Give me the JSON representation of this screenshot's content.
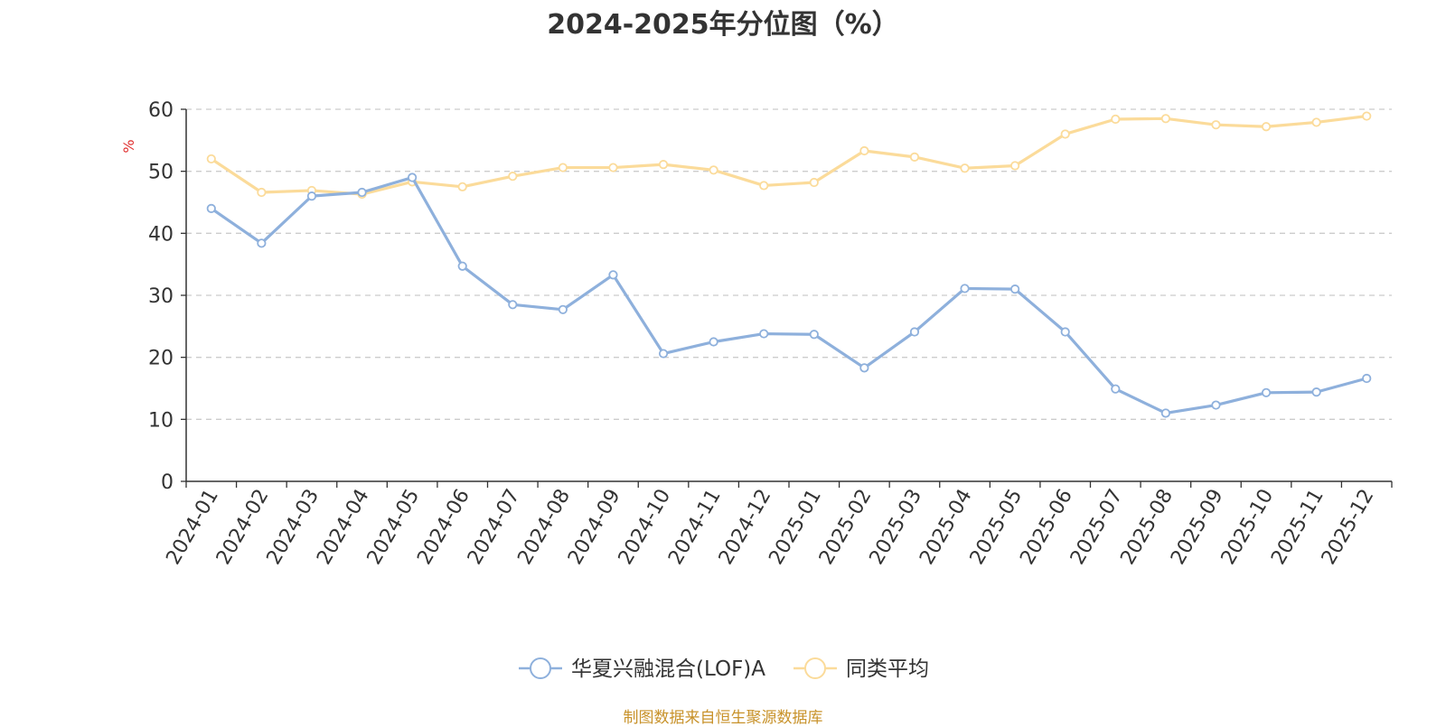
{
  "chart_data": {
    "type": "line",
    "title": "2024-2025年分位图（%）",
    "ylabel": "%",
    "xlabel": "",
    "ylim": [
      0,
      60
    ],
    "yticks": [
      0,
      10,
      20,
      30,
      40,
      50,
      60
    ],
    "grid": true,
    "legend_position": "bottom-center",
    "categories": [
      "2024-01",
      "2024-02",
      "2024-03",
      "2024-04",
      "2024-05",
      "2024-06",
      "2024-07",
      "2024-08",
      "2024-09",
      "2024-10",
      "2024-11",
      "2024-12",
      "2025-01",
      "2025-02",
      "2025-03",
      "2025-04",
      "2025-05",
      "2025-06",
      "2025-07",
      "2025-08",
      "2025-09",
      "2025-10",
      "2025-11",
      "2025-12"
    ],
    "series": [
      {
        "name": "华夏兴融混合(LOF)A",
        "color": "#8eb0dc",
        "values": [
          44.0,
          38.4,
          46.0,
          46.6,
          49.0,
          34.7,
          28.5,
          27.7,
          33.3,
          20.6,
          22.5,
          23.8,
          23.7,
          18.3,
          24.1,
          31.1,
          31.0,
          24.1,
          14.9,
          11.0,
          12.3,
          14.3,
          14.4,
          16.6
        ]
      },
      {
        "name": "同类平均",
        "color": "#fbdb9a",
        "values": [
          52.0,
          46.6,
          46.9,
          46.3,
          48.3,
          47.5,
          49.2,
          50.6,
          50.6,
          51.1,
          50.2,
          47.7,
          48.2,
          53.3,
          52.3,
          50.5,
          50.9,
          56.0,
          58.4,
          58.5,
          57.5,
          57.2,
          57.9,
          58.9
        ]
      }
    ]
  },
  "source_note": "制图数据来自恒生聚源数据库",
  "colors": {
    "axis": "#333333",
    "grid": "#cccccc",
    "ylabel": "#e03030",
    "source": "#c8922a"
  }
}
